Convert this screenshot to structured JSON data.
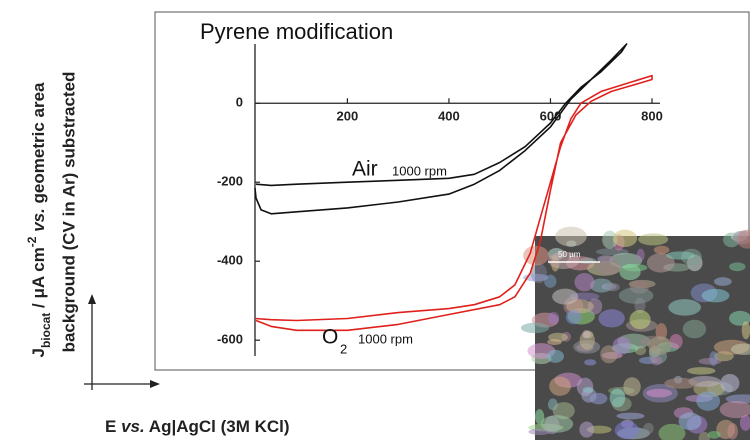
{
  "chart_data": {
    "type": "line",
    "title": "Pyrene modification",
    "y_label": {
      "line1": [
        "J",
        "biocat",
        " / μA cm",
        "-2",
        " vs.",
        " geometric area"
      ],
      "line2": "background (CV in Ar) substracted"
    },
    "x_label": [
      "E ",
      "vs.",
      " Ag|AgCl (3M KCl)"
    ],
    "annotations": {
      "air": "Air",
      "air_rpm": "1000 rpm",
      "o2": "O",
      "o2_sub": "2",
      "o2_rpm": "1000 rpm"
    },
    "inset_scale": "50 µm",
    "xlim": [
      18,
      800
    ],
    "ylim": [
      -640,
      150
    ],
    "xticks": [
      200,
      400,
      600,
      800
    ],
    "yticks": [
      0,
      -200,
      -400,
      -600
    ],
    "series": [
      {
        "name": "Air",
        "color": "#111111",
        "x": [
          20,
          50,
          100,
          200,
          300,
          400,
          450,
          500,
          550,
          600,
          630,
          660,
          700,
          740,
          750,
          720,
          680,
          640,
          600,
          550,
          500,
          450,
          400,
          300,
          200,
          100,
          50,
          30,
          20,
          18
        ],
        "values": [
          -205,
          -208,
          -205,
          -200,
          -195,
          -190,
          -180,
          -150,
          -110,
          -50,
          0,
          40,
          80,
          130,
          150,
          110,
          60,
          10,
          -60,
          -120,
          -170,
          -205,
          -230,
          -250,
          -265,
          -275,
          -280,
          -270,
          -240,
          -215
        ]
      },
      {
        "name": "O2",
        "color": "#e0201b",
        "x": [
          18,
          50,
          100,
          200,
          300,
          400,
          450,
          500,
          530,
          560,
          580,
          600,
          620,
          640,
          660,
          700,
          750,
          800,
          800,
          760,
          720,
          680,
          650,
          620,
          600,
          580,
          560,
          530,
          500,
          400,
          300,
          200,
          100,
          50,
          20
        ],
        "values": [
          -545,
          -548,
          -550,
          -545,
          -530,
          -520,
          -510,
          -490,
          -460,
          -380,
          -290,
          -200,
          -110,
          -40,
          0,
          30,
          50,
          70,
          60,
          45,
          30,
          5,
          -30,
          -100,
          -220,
          -350,
          -430,
          -490,
          -510,
          -535,
          -560,
          -575,
          -575,
          -565,
          -550
        ]
      }
    ]
  }
}
